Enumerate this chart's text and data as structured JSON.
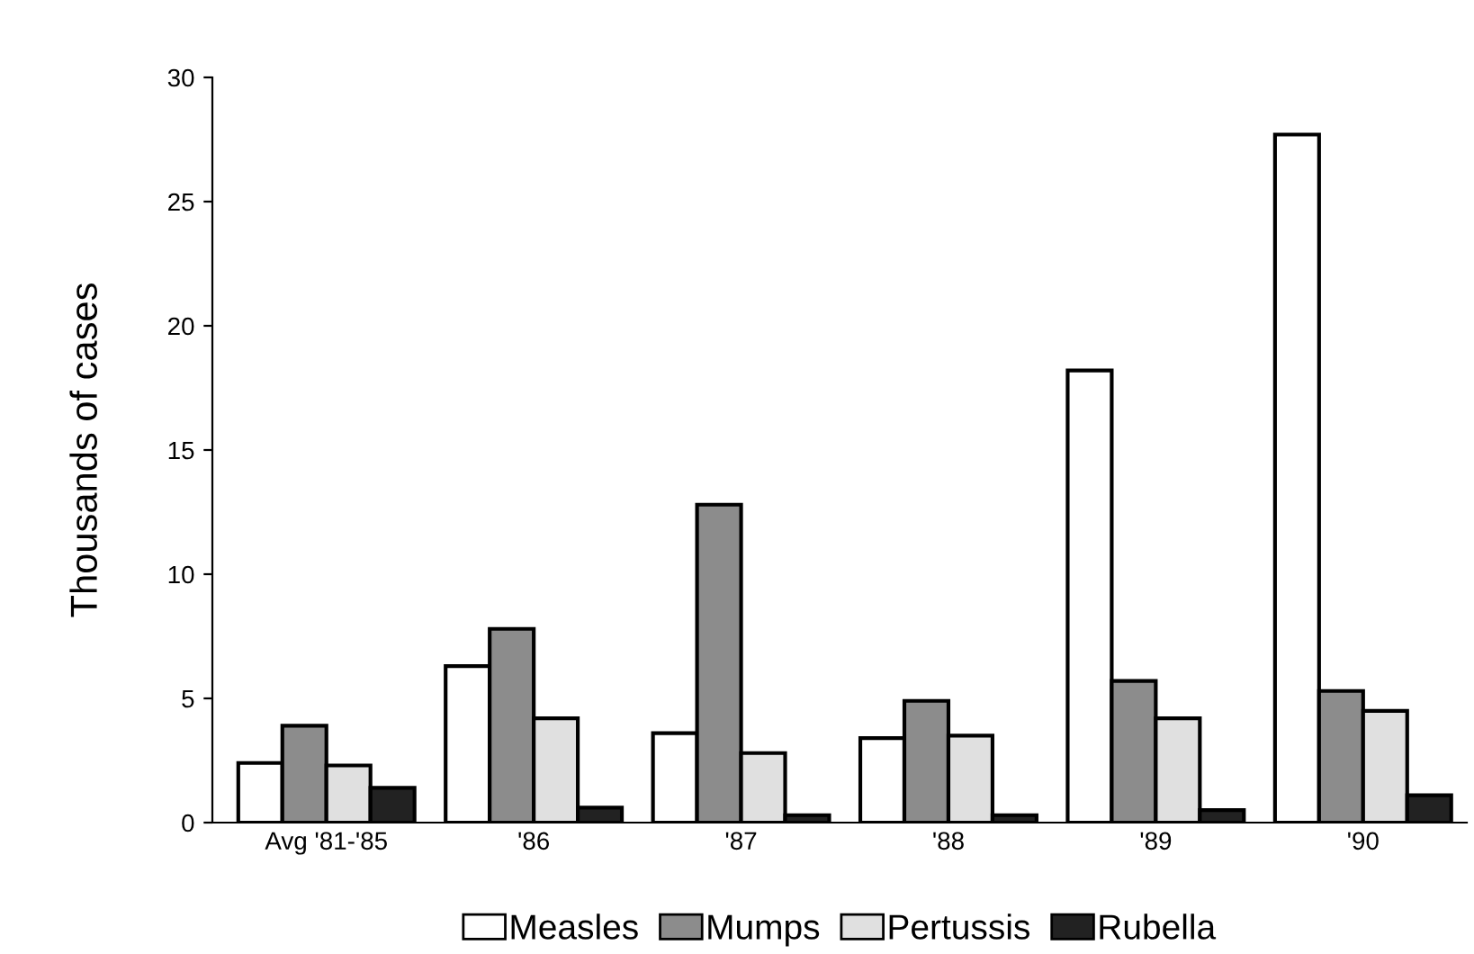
{
  "chart_data": {
    "type": "bar",
    "ylabel": "Thousands of cases",
    "categories": [
      "Avg '81-'85",
      "'86",
      "'87",
      "'88",
      "'89",
      "'90"
    ],
    "series": [
      {
        "name": "Measles",
        "color": "#ffffff",
        "values": [
          2.4,
          6.3,
          3.6,
          3.4,
          18.2,
          27.7
        ]
      },
      {
        "name": "Mumps",
        "color": "#8c8c8c",
        "values": [
          3.9,
          7.8,
          12.8,
          4.9,
          5.7,
          5.3
        ]
      },
      {
        "name": "Pertussis",
        "color": "#e0e0e0",
        "values": [
          2.3,
          4.2,
          2.8,
          3.5,
          4.2,
          4.5
        ]
      },
      {
        "name": "Rubella",
        "color": "#222222",
        "values": [
          1.4,
          0.6,
          0.3,
          0.3,
          0.5,
          1.1
        ]
      }
    ],
    "ylim": [
      0,
      30
    ],
    "yticks": [
      0,
      5,
      10,
      15,
      20,
      25,
      30
    ],
    "grid": false,
    "legend": "bottom"
  }
}
